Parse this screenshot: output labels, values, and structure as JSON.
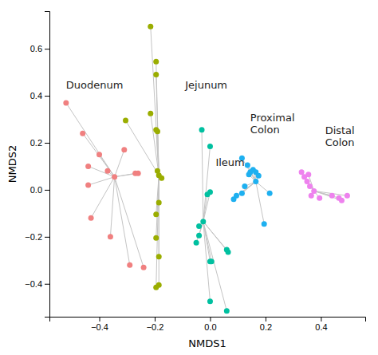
{
  "chart_data": {
    "type": "scatter",
    "xlabel": "NMDS1",
    "ylabel": "NMDS2",
    "xlim": [
      -0.58,
      0.56
    ],
    "ylim": [
      -0.54,
      0.76
    ],
    "xticks": [
      {
        "value": -0.4,
        "label": "−0.4"
      },
      {
        "value": -0.2,
        "label": "−0.2"
      },
      {
        "value": 0.0,
        "label": "0.0"
      },
      0.2,
      0.4
    ],
    "yticks": [
      {
        "value": -0.4,
        "label": "−0.4"
      },
      {
        "value": -0.2,
        "label": "−0.2"
      },
      {
        "value": 0.0,
        "label": "0.0"
      },
      0.2,
      0.4,
      0.6
    ],
    "series": [
      {
        "color": "#F08080",
        "centroid": [
          -0.345,
          0.055
        ],
        "x": [
          -0.52,
          -0.46,
          -0.44,
          -0.44,
          -0.43,
          -0.4,
          -0.37,
          -0.36,
          -0.31,
          -0.29,
          -0.27,
          -0.26,
          -0.24
        ],
        "y": [
          0.37,
          0.24,
          0.1,
          0.02,
          -0.12,
          0.15,
          0.08,
          -0.2,
          0.17,
          -0.32,
          0.07,
          0.07,
          -0.33
        ]
      },
      {
        "color": "#9aad00",
        "centroid": [
          -0.185,
          0.062
        ],
        "x": [
          -0.215,
          -0.195,
          -0.195,
          -0.215,
          -0.195,
          -0.19,
          -0.19,
          -0.175,
          -0.185,
          -0.195,
          -0.195,
          -0.185,
          -0.185,
          -0.195,
          -0.305
        ],
        "y": [
          0.695,
          0.545,
          0.49,
          0.325,
          0.255,
          0.248,
          0.08,
          0.05,
          -0.055,
          -0.105,
          -0.205,
          -0.285,
          -0.405,
          -0.415,
          0.295
        ]
      },
      {
        "color": "#00C0A0",
        "centroid": [
          -0.025,
          -0.135
        ],
        "x": [
          -0.03,
          0.0,
          0.0,
          -0.01,
          -0.04,
          -0.04,
          -0.05,
          0.06,
          0.065,
          0.0,
          0.005,
          0.0,
          0.06
        ],
        "y": [
          0.255,
          0.185,
          -0.01,
          -0.02,
          -0.155,
          -0.195,
          -0.225,
          -0.255,
          -0.265,
          -0.305,
          -0.305,
          -0.475,
          -0.515
        ]
      },
      {
        "color": "#1EB0F0",
        "centroid": [
          0.165,
          0.035
        ],
        "x": [
          0.115,
          0.135,
          0.14,
          0.145,
          0.155,
          0.165,
          0.175,
          0.125,
          0.115,
          0.095,
          0.085,
          0.195,
          0.215
        ],
        "y": [
          0.135,
          0.105,
          0.065,
          0.075,
          0.085,
          0.075,
          0.06,
          0.015,
          -0.015,
          -0.025,
          -0.04,
          -0.145,
          -0.015
        ]
      },
      {
        "color": "#EE82EE",
        "centroid": [
          0.375,
          -0.005
        ],
        "x": [
          0.33,
          0.34,
          0.35,
          0.355,
          0.36,
          0.365,
          0.395,
          0.44,
          0.465,
          0.475,
          0.495
        ],
        "y": [
          0.075,
          0.055,
          0.035,
          0.065,
          0.015,
          -0.025,
          -0.035,
          -0.025,
          -0.035,
          -0.045,
          -0.025
        ]
      }
    ],
    "annotations": [
      {
        "text": "Duodenum",
        "x": -0.52,
        "y": 0.42
      },
      {
        "text": "Jejunum",
        "x": -0.09,
        "y": 0.42
      },
      {
        "text": "Ileum",
        "x": 0.02,
        "y": 0.09
      },
      {
        "text": "Proximal\nColon",
        "x": 0.145,
        "y": 0.23
      },
      {
        "text": "Distal\nColon",
        "x": 0.415,
        "y": 0.175
      }
    ]
  }
}
